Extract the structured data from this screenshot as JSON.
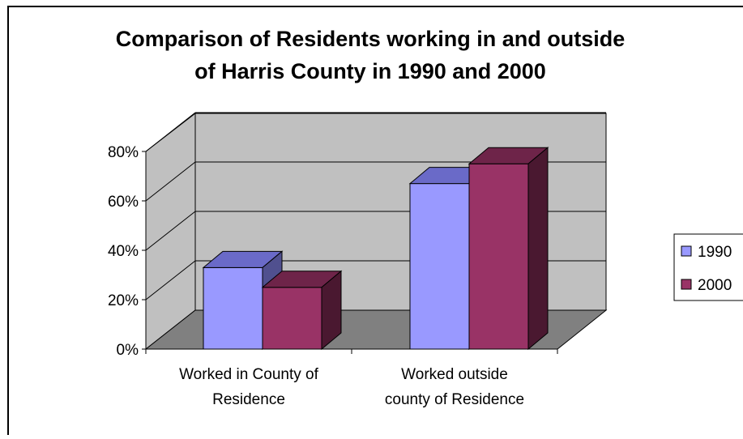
{
  "chart_data": {
    "type": "bar",
    "title": "Comparison of Residents working in and outside of Harris County in 1990 and 2000",
    "title_lines": [
      "Comparison of Residents working in and outside",
      "of Harris County in 1990 and 2000"
    ],
    "categories": [
      "Worked in County of Residence",
      "Worked outside county of Residence"
    ],
    "category_lines": [
      [
        "Worked in County of",
        "Residence"
      ],
      [
        "Worked outside",
        "county of Residence"
      ]
    ],
    "series": [
      {
        "name": "1990",
        "values": [
          33,
          67
        ],
        "color": "#9999FF",
        "top_color": "#6A6AC8",
        "side_color": "#50508F"
      },
      {
        "name": "2000",
        "values": [
          25,
          75
        ],
        "color": "#993366",
        "top_color": "#6E2449",
        "side_color": "#4A1830"
      }
    ],
    "ylim": [
      0,
      80
    ],
    "y_ticks": [
      "0%",
      "20%",
      "40%",
      "60%",
      "80%"
    ],
    "y_tick_values": [
      0,
      20,
      40,
      60,
      80
    ],
    "grid": true,
    "legend_position": "right",
    "three_d": true,
    "wall_color": "#C0C0C0",
    "floor_color": "#808080"
  }
}
